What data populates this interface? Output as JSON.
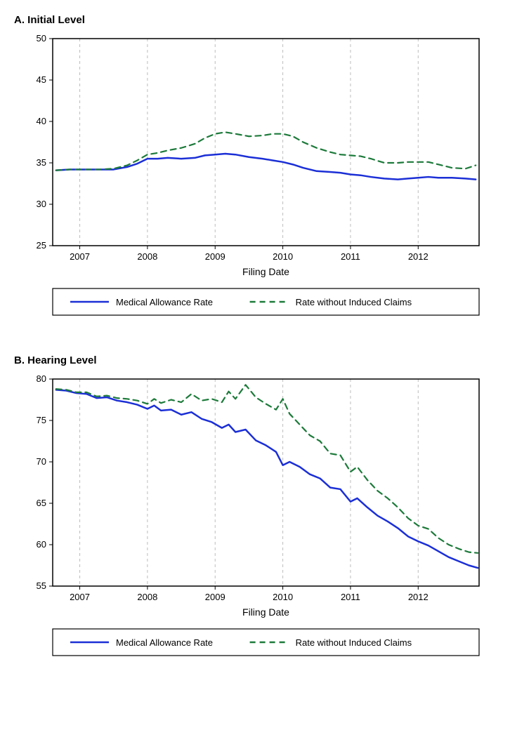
{
  "global": {
    "background_color": "#ffffff",
    "font_family": "Arial, Helvetica, sans-serif",
    "title_fontsize": 15,
    "title_color": "#000000"
  },
  "chartA": {
    "type": "line",
    "title": "A. Initial Level",
    "xlabel": "Filing Date",
    "xlabel_fontsize": 14,
    "xlabel_color": "#000000",
    "series_colors": {
      "medical": "#1b2fd6",
      "induced": "#1c7a3a"
    },
    "line_widths": {
      "medical": 2.5,
      "induced": 2.2
    },
    "dash": {
      "medical": "none",
      "induced": "8,6"
    },
    "xlim": [
      2006.6,
      2012.9
    ],
    "ylim": [
      25,
      50
    ],
    "xticks": [
      2007,
      2008,
      2009,
      2010,
      2011,
      2012
    ],
    "yticks": [
      25,
      30,
      35,
      40,
      45,
      50
    ],
    "ytick_labels": [
      "25",
      "30",
      "35",
      "40",
      "45",
      "50"
    ],
    "xtick_labels": [
      "2007",
      "2008",
      "2009",
      "2010",
      "2011",
      "2012"
    ],
    "grid_color": "#bdbdbd",
    "grid_dash": "4,4",
    "border_color": "#000000",
    "tick_fontsize": 13,
    "tick_color": "#000000",
    "legend": {
      "items": [
        {
          "label": "Medical Allowance Rate",
          "color": "#1b2fd6",
          "dash": "none"
        },
        {
          "label": "Rate without Induced Claims",
          "color": "#1c7a3a",
          "dash": "8,6"
        }
      ],
      "fontsize": 13,
      "border_color": "#000000",
      "text_color": "#000000"
    },
    "series": {
      "medical": [
        [
          2006.65,
          34.1
        ],
        [
          2006.85,
          34.2
        ],
        [
          2007.0,
          34.2
        ],
        [
          2007.15,
          34.2
        ],
        [
          2007.3,
          34.2
        ],
        [
          2007.5,
          34.2
        ],
        [
          2007.7,
          34.5
        ],
        [
          2007.85,
          34.9
        ],
        [
          2008.0,
          35.5
        ],
        [
          2008.15,
          35.5
        ],
        [
          2008.3,
          35.6
        ],
        [
          2008.5,
          35.5
        ],
        [
          2008.7,
          35.6
        ],
        [
          2008.85,
          35.9
        ],
        [
          2009.0,
          36.0
        ],
        [
          2009.15,
          36.1
        ],
        [
          2009.3,
          36.0
        ],
        [
          2009.5,
          35.7
        ],
        [
          2009.7,
          35.5
        ],
        [
          2009.85,
          35.3
        ],
        [
          2010.0,
          35.1
        ],
        [
          2010.15,
          34.8
        ],
        [
          2010.3,
          34.4
        ],
        [
          2010.5,
          34.0
        ],
        [
          2010.7,
          33.9
        ],
        [
          2010.85,
          33.8
        ],
        [
          2011.0,
          33.6
        ],
        [
          2011.15,
          33.5
        ],
        [
          2011.3,
          33.3
        ],
        [
          2011.5,
          33.1
        ],
        [
          2011.7,
          33.0
        ],
        [
          2011.85,
          33.1
        ],
        [
          2012.0,
          33.2
        ],
        [
          2012.15,
          33.3
        ],
        [
          2012.3,
          33.2
        ],
        [
          2012.5,
          33.2
        ],
        [
          2012.7,
          33.1
        ],
        [
          2012.85,
          33.0
        ]
      ],
      "induced": [
        [
          2006.65,
          34.1
        ],
        [
          2006.85,
          34.2
        ],
        [
          2007.0,
          34.2
        ],
        [
          2007.15,
          34.2
        ],
        [
          2007.3,
          34.2
        ],
        [
          2007.5,
          34.3
        ],
        [
          2007.7,
          34.7
        ],
        [
          2007.85,
          35.3
        ],
        [
          2008.0,
          36.0
        ],
        [
          2008.15,
          36.2
        ],
        [
          2008.3,
          36.5
        ],
        [
          2008.5,
          36.8
        ],
        [
          2008.7,
          37.3
        ],
        [
          2008.85,
          38.0
        ],
        [
          2009.0,
          38.5
        ],
        [
          2009.15,
          38.7
        ],
        [
          2009.3,
          38.5
        ],
        [
          2009.5,
          38.2
        ],
        [
          2009.7,
          38.3
        ],
        [
          2009.85,
          38.5
        ],
        [
          2010.0,
          38.5
        ],
        [
          2010.15,
          38.2
        ],
        [
          2010.3,
          37.5
        ],
        [
          2010.5,
          36.8
        ],
        [
          2010.7,
          36.3
        ],
        [
          2010.85,
          36.0
        ],
        [
          2011.0,
          35.9
        ],
        [
          2011.15,
          35.8
        ],
        [
          2011.3,
          35.5
        ],
        [
          2011.5,
          35.0
        ],
        [
          2011.7,
          35.0
        ],
        [
          2011.85,
          35.1
        ],
        [
          2012.0,
          35.1
        ],
        [
          2012.15,
          35.1
        ],
        [
          2012.3,
          34.8
        ],
        [
          2012.5,
          34.4
        ],
        [
          2012.7,
          34.3
        ],
        [
          2012.85,
          34.7
        ]
      ]
    }
  },
  "chartB": {
    "type": "line",
    "title": "B. Hearing Level",
    "xlabel": "Filing Date",
    "xlabel_fontsize": 14,
    "xlabel_color": "#000000",
    "series_colors": {
      "medical": "#1b2fd6",
      "induced": "#1c7a3a"
    },
    "line_widths": {
      "medical": 2.5,
      "induced": 2.2
    },
    "dash": {
      "medical": "none",
      "induced": "8,6"
    },
    "xlim": [
      2006.6,
      2012.9
    ],
    "ylim": [
      55,
      80
    ],
    "xticks": [
      2007,
      2008,
      2009,
      2010,
      2011,
      2012
    ],
    "yticks": [
      55,
      60,
      65,
      70,
      75,
      80
    ],
    "ytick_labels": [
      "55",
      "60",
      "65",
      "70",
      "75",
      "80"
    ],
    "xtick_labels": [
      "2007",
      "2008",
      "2009",
      "2010",
      "2011",
      "2012"
    ],
    "grid_color": "#bdbdbd",
    "grid_dash": "4,4",
    "border_color": "#000000",
    "tick_fontsize": 13,
    "tick_color": "#000000",
    "legend": {
      "items": [
        {
          "label": "Medical Allowance Rate",
          "color": "#1b2fd6",
          "dash": "none"
        },
        {
          "label": "Rate without Induced Claims",
          "color": "#1c7a3a",
          "dash": "8,6"
        }
      ],
      "fontsize": 13,
      "border_color": "#000000",
      "text_color": "#000000"
    },
    "series": {
      "medical": [
        [
          2006.65,
          78.7
        ],
        [
          2006.8,
          78.6
        ],
        [
          2006.95,
          78.3
        ],
        [
          2007.1,
          78.2
        ],
        [
          2007.25,
          77.7
        ],
        [
          2007.4,
          77.8
        ],
        [
          2007.55,
          77.4
        ],
        [
          2007.7,
          77.2
        ],
        [
          2007.85,
          76.9
        ],
        [
          2008.0,
          76.4
        ],
        [
          2008.1,
          76.8
        ],
        [
          2008.2,
          76.2
        ],
        [
          2008.35,
          76.3
        ],
        [
          2008.5,
          75.7
        ],
        [
          2008.65,
          76.0
        ],
        [
          2008.8,
          75.2
        ],
        [
          2008.95,
          74.8
        ],
        [
          2009.1,
          74.1
        ],
        [
          2009.2,
          74.5
        ],
        [
          2009.3,
          73.6
        ],
        [
          2009.45,
          73.9
        ],
        [
          2009.6,
          72.6
        ],
        [
          2009.75,
          72.0
        ],
        [
          2009.9,
          71.2
        ],
        [
          2010.0,
          69.6
        ],
        [
          2010.1,
          70.0
        ],
        [
          2010.25,
          69.4
        ],
        [
          2010.4,
          68.5
        ],
        [
          2010.55,
          68.0
        ],
        [
          2010.7,
          66.9
        ],
        [
          2010.85,
          66.7
        ],
        [
          2011.0,
          65.2
        ],
        [
          2011.1,
          65.6
        ],
        [
          2011.25,
          64.5
        ],
        [
          2011.4,
          63.5
        ],
        [
          2011.55,
          62.8
        ],
        [
          2011.7,
          62.0
        ],
        [
          2011.85,
          61.0
        ],
        [
          2012.0,
          60.4
        ],
        [
          2012.15,
          59.9
        ],
        [
          2012.3,
          59.2
        ],
        [
          2012.45,
          58.5
        ],
        [
          2012.6,
          58.0
        ],
        [
          2012.75,
          57.5
        ],
        [
          2012.88,
          57.2
        ]
      ],
      "induced": [
        [
          2006.65,
          78.8
        ],
        [
          2006.8,
          78.7
        ],
        [
          2006.95,
          78.4
        ],
        [
          2007.1,
          78.4
        ],
        [
          2007.25,
          77.9
        ],
        [
          2007.4,
          78.0
        ],
        [
          2007.55,
          77.7
        ],
        [
          2007.7,
          77.6
        ],
        [
          2007.85,
          77.4
        ],
        [
          2008.0,
          77.0
        ],
        [
          2008.1,
          77.6
        ],
        [
          2008.2,
          77.1
        ],
        [
          2008.35,
          77.5
        ],
        [
          2008.5,
          77.2
        ],
        [
          2008.65,
          78.2
        ],
        [
          2008.8,
          77.4
        ],
        [
          2008.95,
          77.6
        ],
        [
          2009.1,
          77.2
        ],
        [
          2009.2,
          78.5
        ],
        [
          2009.3,
          77.6
        ],
        [
          2009.45,
          79.3
        ],
        [
          2009.6,
          77.8
        ],
        [
          2009.75,
          77.0
        ],
        [
          2009.9,
          76.3
        ],
        [
          2010.0,
          77.6
        ],
        [
          2010.1,
          75.8
        ],
        [
          2010.25,
          74.5
        ],
        [
          2010.4,
          73.2
        ],
        [
          2010.55,
          72.5
        ],
        [
          2010.7,
          71.0
        ],
        [
          2010.85,
          70.8
        ],
        [
          2011.0,
          68.8
        ],
        [
          2011.1,
          69.4
        ],
        [
          2011.25,
          67.8
        ],
        [
          2011.4,
          66.5
        ],
        [
          2011.55,
          65.6
        ],
        [
          2011.7,
          64.5
        ],
        [
          2011.85,
          63.2
        ],
        [
          2012.0,
          62.3
        ],
        [
          2012.15,
          61.9
        ],
        [
          2012.3,
          60.8
        ],
        [
          2012.45,
          60.0
        ],
        [
          2012.6,
          59.5
        ],
        [
          2012.75,
          59.1
        ],
        [
          2012.88,
          59.0
        ]
      ]
    }
  }
}
